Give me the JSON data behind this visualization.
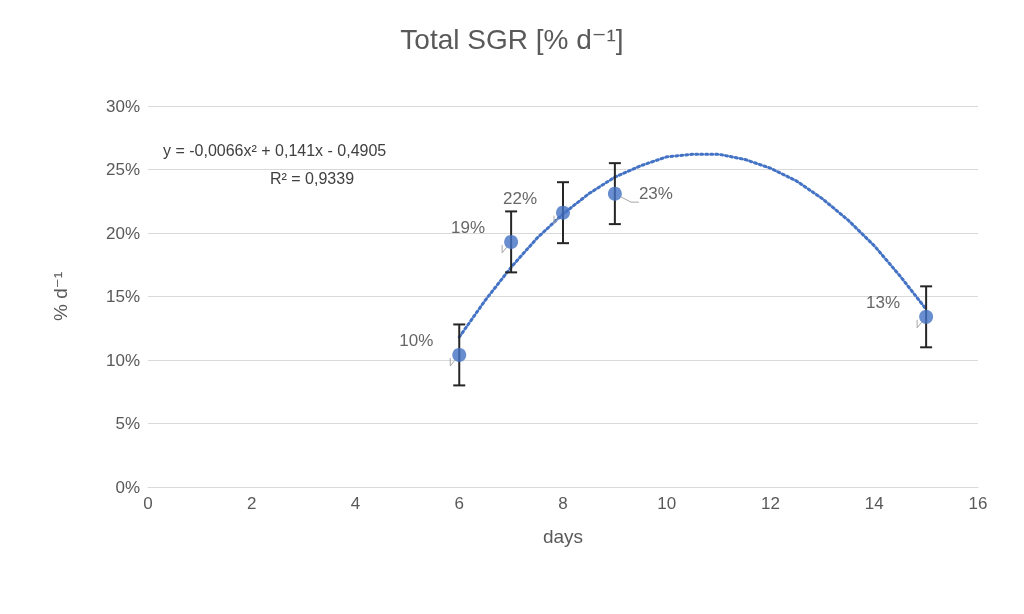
{
  "chart_data": {
    "type": "scatter",
    "title": "Total SGR [% d⁻¹]",
    "xlabel": "days",
    "ylabel": "% d⁻¹",
    "x": [
      6,
      7,
      8,
      9,
      15
    ],
    "series": [
      {
        "color": "#4472c4",
        "values": [
          10.4,
          19.3,
          21.6,
          23.1,
          13.4
        ],
        "errors": [
          2.4,
          2.4,
          2.4,
          2.4,
          2.4
        ],
        "value_labels": [
          "10%",
          "19%",
          "22%",
          "23%",
          "13%"
        ],
        "marker": "circle"
      },
      {
        "type": "line",
        "color": "#4472c4",
        "line_style": "dotted",
        "marker": "none",
        "x": [
          6,
          6.5,
          7,
          7.5,
          8,
          8.5,
          9,
          9.5,
          10,
          10.5,
          11,
          11.5,
          12,
          12.5,
          13,
          13.5,
          14,
          14.5,
          15
        ],
        "values": [
          11.8,
          14.7,
          17.3,
          19.6,
          21.5,
          23.1,
          24.4,
          25.3,
          26.0,
          26.2,
          26.2,
          25.8,
          25.1,
          24.1,
          22.7,
          21.0,
          19.0,
          16.6,
          14.0
        ]
      }
    ],
    "xlim": [
      0,
      16
    ],
    "xticks": [
      0,
      2,
      4,
      6,
      8,
      10,
      12,
      14,
      16
    ],
    "ylim": [
      0,
      30
    ],
    "yticks": [
      {
        "value": 0,
        "label": "0%"
      },
      {
        "value": 5,
        "label": "5%"
      },
      {
        "value": 10,
        "label": "10%"
      },
      {
        "value": 15,
        "label": "15%"
      },
      {
        "value": 20,
        "label": "20%"
      },
      {
        "value": 25,
        "label": "25%"
      },
      {
        "value": 30,
        "label": "30%"
      }
    ],
    "grid": "y",
    "annotations": [
      "y = -0,0066x² + 0,141x - 0,4905",
      "R² = 0,9339"
    ]
  }
}
